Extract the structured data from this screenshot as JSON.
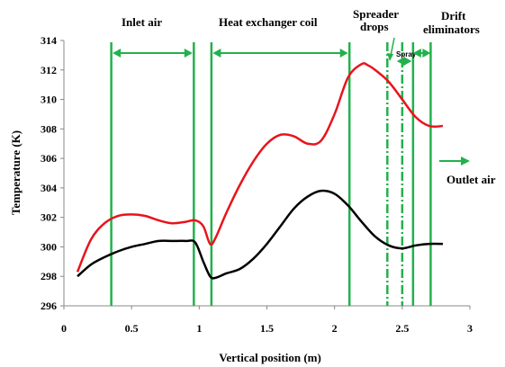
{
  "chart_data": {
    "type": "line",
    "xlabel": "Vertical position (m)",
    "ylabel": "Temperature (K)",
    "xlim": [
      0,
      3
    ],
    "ylim": [
      296,
      314
    ],
    "xticks": [
      "0",
      "0.5",
      "1",
      "1.5",
      "2",
      "2.5",
      "3"
    ],
    "yticks": [
      "296",
      "298",
      "300",
      "302",
      "304",
      "306",
      "308",
      "310",
      "312",
      "314"
    ],
    "grid": false,
    "series": [
      {
        "color": "#e8141c",
        "x": [
          0.1,
          0.2,
          0.3,
          0.4,
          0.5,
          0.6,
          0.7,
          0.8,
          0.9,
          0.97,
          1.03,
          1.08,
          1.12,
          1.2,
          1.3,
          1.4,
          1.5,
          1.6,
          1.7,
          1.8,
          1.9,
          2.0,
          2.1,
          2.2,
          2.25,
          2.3,
          2.4,
          2.5,
          2.6,
          2.7,
          2.8
        ],
        "y": [
          298.3,
          300.5,
          301.6,
          302.1,
          302.2,
          302.1,
          301.8,
          301.6,
          301.7,
          301.8,
          301.4,
          300.2,
          300.6,
          302.3,
          304.2,
          305.8,
          307.0,
          307.6,
          307.5,
          307.0,
          307.2,
          309.0,
          311.5,
          312.4,
          312.3,
          312.0,
          311.2,
          310.0,
          308.8,
          308.2,
          308.2
        ]
      },
      {
        "color": "#000000",
        "x": [
          0.1,
          0.2,
          0.3,
          0.4,
          0.5,
          0.6,
          0.7,
          0.8,
          0.9,
          0.97,
          1.03,
          1.08,
          1.12,
          1.2,
          1.3,
          1.4,
          1.5,
          1.6,
          1.7,
          1.8,
          1.9,
          2.0,
          2.1,
          2.2,
          2.3,
          2.4,
          2.5,
          2.6,
          2.7,
          2.8
        ],
        "y": [
          298.0,
          298.8,
          299.3,
          299.7,
          300.0,
          300.2,
          300.4,
          300.4,
          300.4,
          300.3,
          299.0,
          298.0,
          297.9,
          298.2,
          298.5,
          299.2,
          300.2,
          301.4,
          302.6,
          303.4,
          303.8,
          303.6,
          302.8,
          301.7,
          300.7,
          300.1,
          299.9,
          300.1,
          300.2,
          300.2
        ]
      }
    ],
    "regions": [
      {
        "label": "Inlet air",
        "x_start": 0.35,
        "x_end": 0.97
      },
      {
        "label": "Heat exchanger coil",
        "x_start": 1.09,
        "x_end": 2.11
      },
      {
        "label": "Spreader drops",
        "x_start": 2.39,
        "x_end": 2.45
      },
      {
        "label": "Spray",
        "x_start": 2.45,
        "x_end": 2.58
      },
      {
        "label": "Drift eliminators",
        "x_start": 2.58,
        "x_end": 2.7
      }
    ],
    "outlet_label": "Outlet air",
    "boundary_lines": [
      {
        "x": 0.35,
        "style": "solid"
      },
      {
        "x": 0.96,
        "style": "solid"
      },
      {
        "x": 1.09,
        "style": "solid"
      },
      {
        "x": 2.11,
        "style": "solid"
      },
      {
        "x": 2.39,
        "style": "dashdot"
      },
      {
        "x": 2.5,
        "style": "dashdot"
      },
      {
        "x": 2.58,
        "style": "solid"
      },
      {
        "x": 2.71,
        "style": "solid"
      }
    ],
    "accent_color": "#22b14c"
  }
}
